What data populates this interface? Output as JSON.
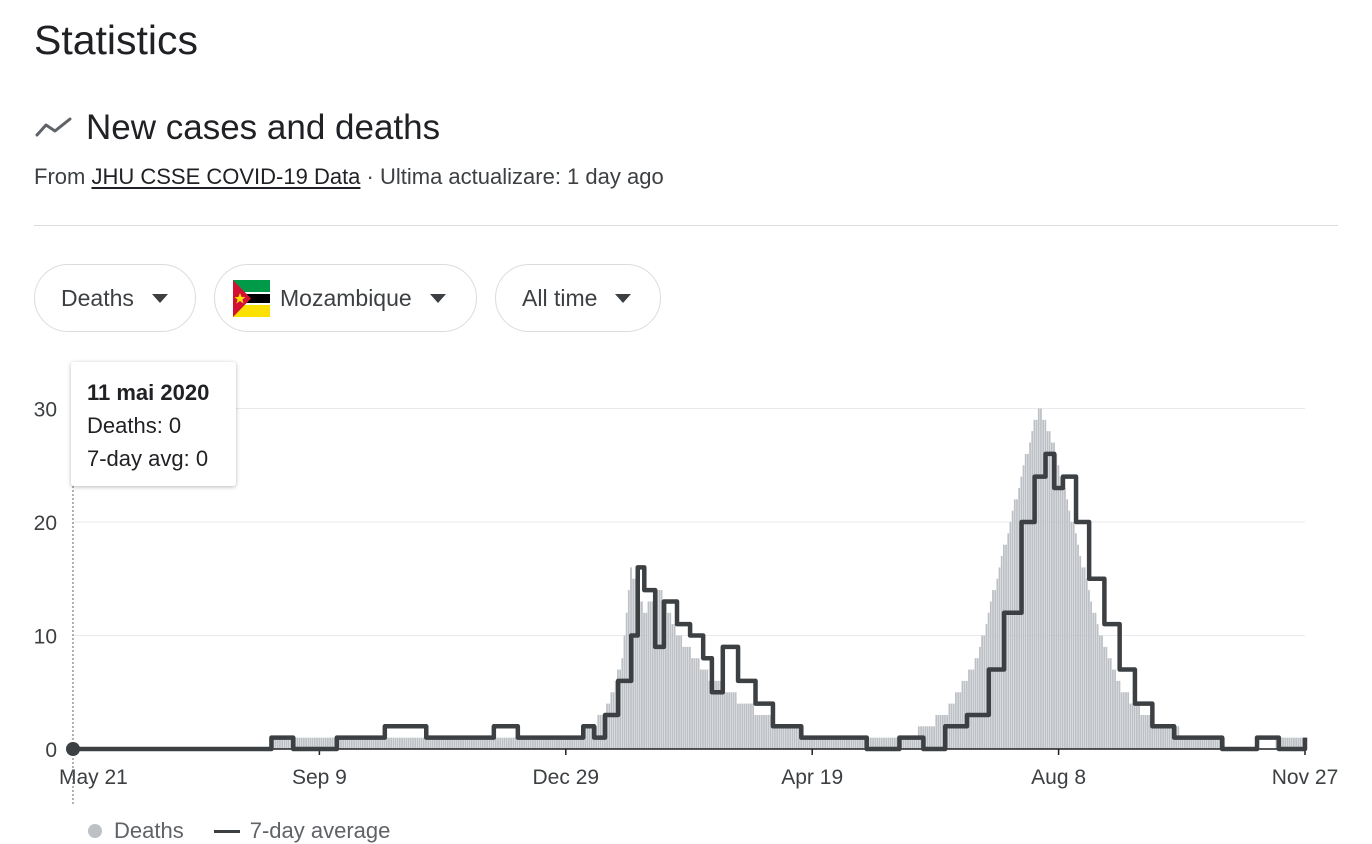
{
  "page": {
    "title": "Statistics"
  },
  "section": {
    "title": "New cases and deaths",
    "icon": "trending-line-icon",
    "source_prefix": "From",
    "source_link": "JHU CSSE COVID-19 Data",
    "source_suffix": "· Ultima actualizare: 1 day ago"
  },
  "filters": {
    "metric": "Deaths",
    "country": "Mozambique",
    "country_icon": "mozambique-flag-icon",
    "range": "All time",
    "caret_icon": "caret-down-icon"
  },
  "tooltip": {
    "date": "11 mai 2020",
    "deaths": "Deaths: 0",
    "avg": "7-day avg: 0"
  },
  "legend": {
    "deaths": "Deaths",
    "avg": "7-day average"
  },
  "colors": {
    "bars": "#bdc1c6",
    "line": "#3c4043",
    "grid": "#e8eaed",
    "axis": "#202124"
  },
  "chart_data": {
    "type": "bar",
    "start_date": "2020-05-11",
    "end_date": "2021-11-27",
    "x_tick_labels": [
      "May 21",
      "Sep 9",
      "Dec 29",
      "Apr 19",
      "Aug 8",
      "Nov 27"
    ],
    "y_tick_labels": [
      "0",
      "10",
      "20",
      "30"
    ],
    "ylim": [
      0,
      34
    ],
    "series": [
      {
        "name": "Deaths",
        "type": "bar",
        "points": [
          [
            "2020-05-11",
            0
          ],
          [
            "2020-07-01",
            0
          ],
          [
            "2020-08-01",
            0
          ],
          [
            "2020-08-20",
            1
          ],
          [
            "2020-09-05",
            1
          ],
          [
            "2020-09-25",
            1
          ],
          [
            "2020-10-20",
            1
          ],
          [
            "2020-11-15",
            1
          ],
          [
            "2020-12-10",
            1
          ],
          [
            "2020-12-25",
            1
          ],
          [
            "2021-01-05",
            2
          ],
          [
            "2021-01-12",
            4
          ],
          [
            "2021-01-18",
            8
          ],
          [
            "2021-01-22",
            16
          ],
          [
            "2021-01-28",
            12
          ],
          [
            "2021-02-05",
            14
          ],
          [
            "2021-02-12",
            10
          ],
          [
            "2021-02-20",
            8
          ],
          [
            "2021-03-01",
            6
          ],
          [
            "2021-03-15",
            4
          ],
          [
            "2021-04-01",
            2
          ],
          [
            "2021-04-20",
            1
          ],
          [
            "2021-05-10",
            1
          ],
          [
            "2021-05-30",
            1
          ],
          [
            "2021-06-15",
            3
          ],
          [
            "2021-06-30",
            8
          ],
          [
            "2021-07-10",
            16
          ],
          [
            "2021-07-20",
            24
          ],
          [
            "2021-07-28",
            30
          ],
          [
            "2021-08-05",
            26
          ],
          [
            "2021-08-15",
            18
          ],
          [
            "2021-08-25",
            10
          ],
          [
            "2021-09-05",
            5
          ],
          [
            "2021-09-20",
            2
          ],
          [
            "2021-10-10",
            1
          ],
          [
            "2021-11-01",
            0
          ],
          [
            "2021-11-27",
            1
          ]
        ]
      },
      {
        "name": "7-day average",
        "type": "line",
        "points": [
          [
            "2020-05-11",
            0
          ],
          [
            "2020-08-01",
            0
          ],
          [
            "2020-08-10",
            1
          ],
          [
            "2020-08-20",
            0
          ],
          [
            "2020-09-09",
            1
          ],
          [
            "2020-10-01",
            2
          ],
          [
            "2020-10-20",
            1
          ],
          [
            "2020-11-10",
            1
          ],
          [
            "2020-11-20",
            2
          ],
          [
            "2020-12-01",
            1
          ],
          [
            "2020-12-28",
            1
          ],
          [
            "2020-12-31",
            2
          ],
          [
            "2021-01-05",
            1
          ],
          [
            "2021-01-10",
            3
          ],
          [
            "2021-01-16",
            6
          ],
          [
            "2021-01-22",
            10
          ],
          [
            "2021-01-25",
            16
          ],
          [
            "2021-01-28",
            14
          ],
          [
            "2021-02-02",
            9
          ],
          [
            "2021-02-06",
            13
          ],
          [
            "2021-02-12",
            11
          ],
          [
            "2021-02-18",
            10
          ],
          [
            "2021-02-24",
            8
          ],
          [
            "2021-02-28",
            5
          ],
          [
            "2021-03-05",
            9
          ],
          [
            "2021-03-12",
            6
          ],
          [
            "2021-03-20",
            4
          ],
          [
            "2021-03-28",
            2
          ],
          [
            "2021-04-10",
            1
          ],
          [
            "2021-05-10",
            0
          ],
          [
            "2021-05-25",
            1
          ],
          [
            "2021-06-05",
            0
          ],
          [
            "2021-06-15",
            2
          ],
          [
            "2021-06-25",
            3
          ],
          [
            "2021-07-05",
            7
          ],
          [
            "2021-07-12",
            12
          ],
          [
            "2021-07-20",
            20
          ],
          [
            "2021-07-26",
            24
          ],
          [
            "2021-07-31",
            26
          ],
          [
            "2021-08-04",
            23
          ],
          [
            "2021-08-08",
            24
          ],
          [
            "2021-08-14",
            20
          ],
          [
            "2021-08-20",
            15
          ],
          [
            "2021-08-27",
            11
          ],
          [
            "2021-09-03",
            7
          ],
          [
            "2021-09-10",
            4
          ],
          [
            "2021-09-18",
            2
          ],
          [
            "2021-09-28",
            1
          ],
          [
            "2021-10-20",
            0
          ],
          [
            "2021-11-05",
            1
          ],
          [
            "2021-11-15",
            0
          ],
          [
            "2021-11-27",
            1
          ]
        ]
      }
    ]
  }
}
